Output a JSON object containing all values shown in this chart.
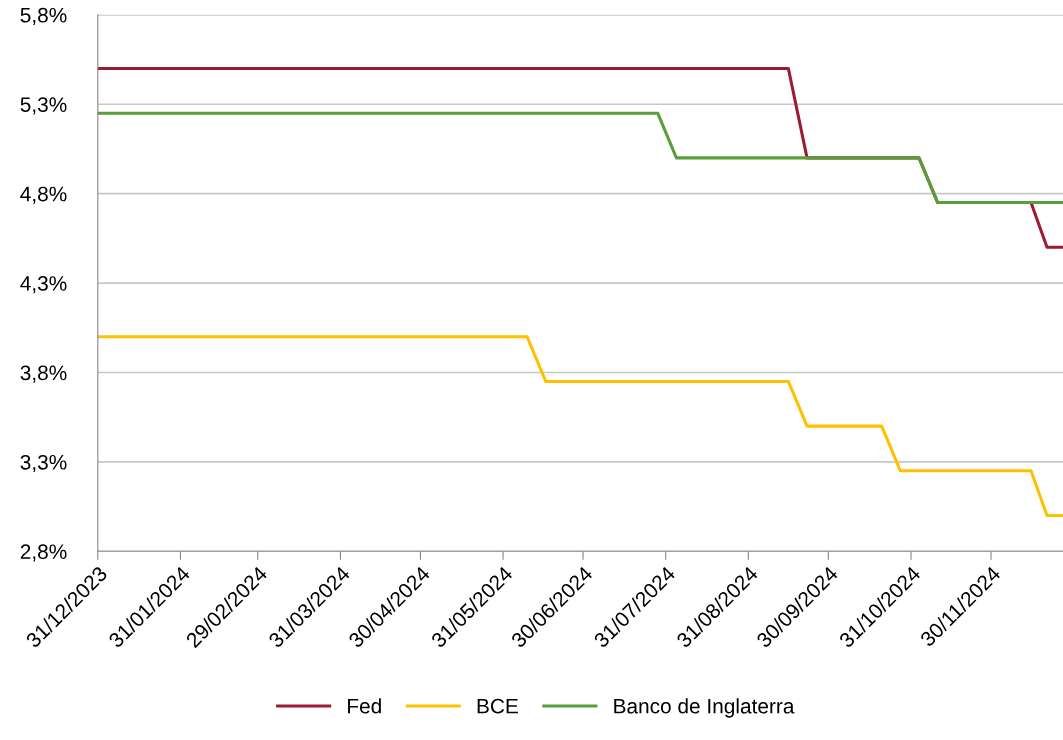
{
  "chart_data": {
    "type": "line",
    "ylim": [
      2.8,
      5.8
    ],
    "yticks": [
      {
        "value": 2.8,
        "label": "2,8%"
      },
      {
        "value": 3.3,
        "label": "3,3%"
      },
      {
        "value": 3.8,
        "label": "3,8%"
      },
      {
        "value": 4.3,
        "label": "4,3%"
      },
      {
        "value": 4.8,
        "label": "4,8%"
      },
      {
        "value": 5.3,
        "label": "5,3%"
      },
      {
        "value": 5.8,
        "label": "5,8%"
      }
    ],
    "xlim": [
      "2023-12-31",
      "2024-12-27"
    ],
    "xticks": [
      {
        "value": "2023-12-31",
        "label": "31/12/2023"
      },
      {
        "value": "2024-01-31",
        "label": "31/01/2024"
      },
      {
        "value": "2024-02-29",
        "label": "29/02/2024"
      },
      {
        "value": "2024-03-31",
        "label": "31/03/2024"
      },
      {
        "value": "2024-04-30",
        "label": "30/04/2024"
      },
      {
        "value": "2024-05-31",
        "label": "31/05/2024"
      },
      {
        "value": "2024-06-30",
        "label": "30/06/2024"
      },
      {
        "value": "2024-07-31",
        "label": "31/07/2024"
      },
      {
        "value": "2024-08-31",
        "label": "31/08/2024"
      },
      {
        "value": "2024-09-30",
        "label": "30/09/2024"
      },
      {
        "value": "2024-10-31",
        "label": "31/10/2024"
      },
      {
        "value": "2024-11-30",
        "label": "30/11/2024"
      }
    ],
    "grid": "y",
    "legend": "bottom",
    "series": [
      {
        "name": "Fed",
        "color": "#9b1b30",
        "x": [
          "2023-12-31",
          "2024-09-15",
          "2024-09-22",
          "2024-11-03",
          "2024-11-10",
          "2024-12-15",
          "2024-12-21",
          "2024-12-27"
        ],
        "values": [
          5.5,
          5.5,
          5.0,
          5.0,
          4.75,
          4.75,
          4.5,
          4.5
        ]
      },
      {
        "name": "BCE",
        "color": "#ffc000",
        "x": [
          "2023-12-31",
          "2024-06-09",
          "2024-06-16",
          "2024-09-15",
          "2024-09-22",
          "2024-10-20",
          "2024-10-27",
          "2024-12-15",
          "2024-12-21",
          "2024-12-27"
        ],
        "values": [
          4.0,
          4.0,
          3.75,
          3.75,
          3.5,
          3.5,
          3.25,
          3.25,
          3.0,
          3.0
        ]
      },
      {
        "name": "Banco de Inglaterra",
        "color": "#5a9e3a",
        "x": [
          "2023-12-31",
          "2024-07-28",
          "2024-08-04",
          "2024-11-03",
          "2024-11-10",
          "2024-12-27"
        ],
        "values": [
          5.25,
          5.25,
          5.0,
          5.0,
          4.75,
          4.75
        ]
      }
    ]
  }
}
